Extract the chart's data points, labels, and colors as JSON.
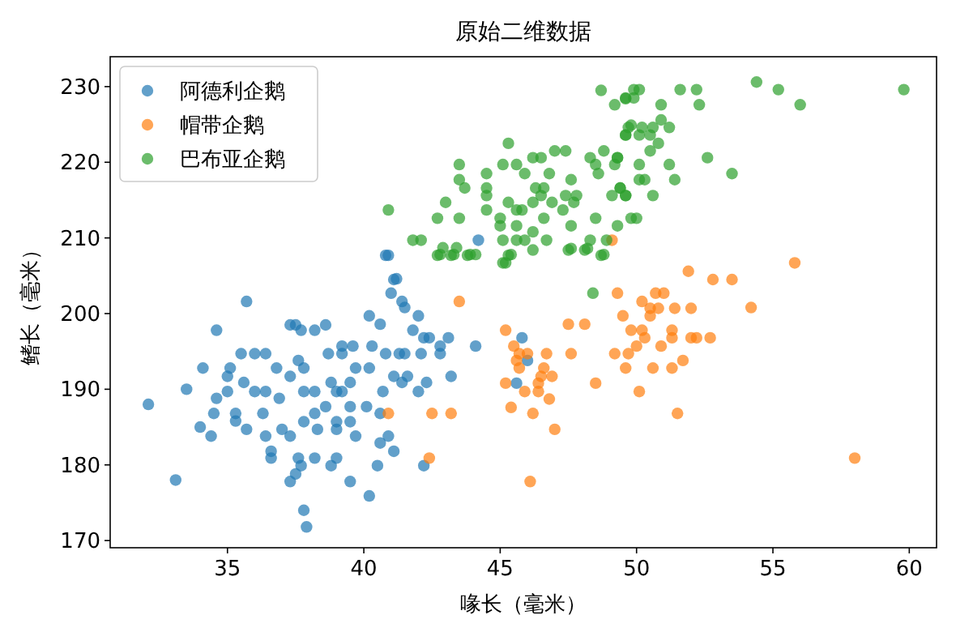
{
  "chart_data": {
    "type": "scatter",
    "title": "原始二维数据",
    "xlabel": "喙长（毫米）",
    "ylabel": "鳍长（毫米）",
    "xlim": [
      30.7,
      61.0
    ],
    "ylim": [
      169.05,
      233.95
    ],
    "xticks": [
      35,
      40,
      45,
      50,
      55,
      60
    ],
    "yticks": [
      170,
      180,
      190,
      200,
      210,
      220,
      230
    ],
    "legend": "top left",
    "marker": "circle",
    "grid": false,
    "series": [
      {
        "name": "阿德利企鹅",
        "color": "#1f77b4",
        "x": [
          32.1,
          33.1,
          33.5,
          34.0,
          34.4,
          34.1,
          34.6,
          34.6,
          34.5,
          35.0,
          35.0,
          35.1,
          35.3,
          35.3,
          35.5,
          35.7,
          35.6,
          35.7,
          36.0,
          36.0,
          36.3,
          36.4,
          36.4,
          36.4,
          36.6,
          36.6,
          36.8,
          36.9,
          37.0,
          37.3,
          37.3,
          37.5,
          37.7,
          37.6,
          37.8,
          37.3,
          37.8,
          37.8,
          37.6,
          37.7,
          37.5,
          37.3,
          37.8,
          37.9,
          38.2,
          38.2,
          38.2,
          38.3,
          38.2,
          38.6,
          38.7,
          38.6,
          38.8,
          39.0,
          39.0,
          39.0,
          38.8,
          39.0,
          39.2,
          39.2,
          39.2,
          39.6,
          39.7,
          39.5,
          39.5,
          39.5,
          39.7,
          39.5,
          40.2,
          40.2,
          40.1,
          40.2,
          40.3,
          40.6,
          40.6,
          40.6,
          40.5,
          40.8,
          40.7,
          40.8,
          41.1,
          41.0,
          41.1,
          41.1,
          40.9,
          41.3,
          41.5,
          41.4,
          41.5,
          41.4,
          41.6,
          41.8,
          42.0,
          42.1,
          42.0,
          42.3,
          42.2,
          42.4,
          42.8,
          42.8,
          43.1,
          43.2,
          42.2,
          44.1,
          45.8,
          46.0,
          45.6,
          44.2,
          40.9,
          41.2
        ],
        "values": [
          188,
          178,
          190,
          185,
          183.8,
          192.8,
          197.8,
          188.8,
          186.8,
          189.7,
          191.7,
          192.8,
          186.8,
          185.8,
          194.7,
          201.6,
          190.9,
          184.7,
          194.7,
          189.7,
          186.8,
          194.7,
          189.7,
          183.8,
          181.8,
          180.9,
          192.8,
          188.8,
          184.7,
          183.8,
          198.5,
          198.5,
          197.8,
          193.8,
          192.8,
          191.7,
          189.7,
          185.7,
          180.9,
          179.9,
          178.8,
          177.8,
          174,
          171.8,
          197.8,
          189.7,
          186.8,
          184.7,
          180.9,
          198.5,
          194.7,
          187.7,
          190.9,
          189.7,
          185.7,
          184.7,
          179.9,
          180.9,
          195.7,
          194.7,
          189.7,
          195.7,
          192.8,
          190.9,
          187.7,
          185.7,
          183.8,
          177.8,
          199.7,
          192.8,
          187.7,
          175.9,
          195.7,
          198.6,
          186.8,
          182.9,
          179.9,
          194.7,
          189.7,
          207.7,
          204.5,
          202.7,
          191.7,
          181.8,
          183.8,
          194.7,
          194.7,
          201.6,
          200.8,
          190.9,
          191.7,
          197.8,
          199.7,
          194.7,
          189.7,
          190.9,
          196.8,
          196.8,
          195.7,
          194.7,
          196.8,
          191.7,
          179.9,
          195.7,
          196.8,
          193.8,
          190.8,
          209.7,
          207.7,
          204.6
        ]
      },
      {
        "name": "帽带企鹅",
        "color": "#ff7f0e",
        "x": [
          43.5,
          45.2,
          45.5,
          45.6,
          45.7,
          45.7,
          46.0,
          45.2,
          45.4,
          45.9,
          46.2,
          46.1,
          46.4,
          46.4,
          46.5,
          46.6,
          46.7,
          46.8,
          46.9,
          47.0,
          47.5,
          47.6,
          48.1,
          48.5,
          49.3,
          49.2,
          49.5,
          49.6,
          49.7,
          49.8,
          50.1,
          50.0,
          50.2,
          50.2,
          50.3,
          50.5,
          50.5,
          50.6,
          50.7,
          50.8,
          50.9,
          51.0,
          51.3,
          51.3,
          51.3,
          51.4,
          51.5,
          51.7,
          51.9,
          52.0,
          52.0,
          52.2,
          52.7,
          52.8,
          53.5,
          54.2,
          55.8,
          58.0,
          40.9,
          42.5,
          43.2,
          42.4,
          49.1
        ],
        "values": [
          201.6,
          197.8,
          195.7,
          193.8,
          194.7,
          192.8,
          194.7,
          190.8,
          187.6,
          189.7,
          186.8,
          177.8,
          190.8,
          189.7,
          191.7,
          192.8,
          194.7,
          188.7,
          191.7,
          184.7,
          198.6,
          194.7,
          198.6,
          190.8,
          202.7,
          194.7,
          199.7,
          192.8,
          194.7,
          197.8,
          189.7,
          195.7,
          201.6,
          197.8,
          196.8,
          200.7,
          199.7,
          192.8,
          202.7,
          200.7,
          195.7,
          202.7,
          197.8,
          196.8,
          192.8,
          200.7,
          186.8,
          193.8,
          205.6,
          200.7,
          196.8,
          196.8,
          196.8,
          204.5,
          204.5,
          200.8,
          206.7,
          180.9,
          186.8,
          186.8,
          186.8,
          180.9,
          209.7
        ]
      },
      {
        "name": "巴布亚企鹅",
        "color": "#2ca02c",
        "x": [
          40.9,
          41.8,
          42.1,
          42.7,
          43.0,
          42.8,
          42.9,
          43.3,
          43.4,
          43.5,
          43.7,
          43.5,
          43.5,
          43.9,
          44.1,
          44.5,
          44.5,
          44.5,
          44.5,
          45.0,
          45.0,
          45.1,
          45.3,
          45.3,
          45.2,
          45.4,
          45.1,
          45.6,
          45.6,
          45.6,
          45.6,
          45.9,
          45.8,
          45.9,
          46.2,
          46.5,
          46.3,
          46.2,
          46.6,
          46.5,
          46.2,
          46.6,
          46.7,
          46.9,
          46.8,
          47.0,
          47.4,
          47.4,
          47.3,
          47.6,
          47.8,
          47.6,
          47.6,
          47.7,
          48.2,
          48.3,
          48.3,
          48.5,
          48.6,
          48.5,
          48.8,
          48.8,
          48.9,
          49.2,
          49.3,
          49.1,
          49.4,
          49.6,
          48.7,
          49.2,
          49.6,
          49.6,
          49.8,
          49.8,
          49.6,
          49.9,
          50.1,
          49.9,
          50.9,
          51.6,
          52.2,
          52.3,
          54.4,
          55.2,
          56.0,
          59.8,
          50.9,
          49.7,
          50.2,
          50.6,
          51.2,
          49.6,
          50.1,
          50.5,
          50.8,
          50.5,
          49.3,
          50.1,
          51.2,
          52.6,
          53.5,
          50.1,
          50.3,
          51.4,
          49.4,
          49.6,
          50.6,
          50.0,
          49.3,
          42.7,
          43.2,
          43.8,
          45.1,
          45.3,
          46.2,
          47.5,
          48.1,
          48.7,
          48.4
        ],
        "values": [
          213.7,
          209.7,
          209.7,
          212.6,
          214.7,
          207.8,
          208.7,
          207.8,
          208.7,
          212.6,
          216.6,
          217.7,
          219.7,
          207.8,
          207.8,
          218.5,
          216.6,
          215.6,
          213.7,
          212.6,
          211.6,
          219.7,
          222.5,
          214.7,
          206.7,
          207.8,
          209.7,
          219.7,
          213.7,
          211.6,
          209.7,
          218.5,
          213.7,
          209.7,
          220.6,
          220.6,
          216.6,
          214.7,
          216.6,
          215.6,
          210.8,
          212.6,
          209.7,
          214.7,
          218.5,
          221.5,
          221.5,
          215.6,
          213.7,
          217.7,
          215.6,
          211.6,
          208.6,
          214.7,
          208.6,
          209.7,
          220.6,
          219.7,
          218.5,
          212.6,
          221.5,
          207.8,
          209.7,
          219.7,
          220.6,
          215.6,
          216.6,
          215.6,
          229.5,
          227.6,
          228.4,
          223.6,
          224.9,
          212.6,
          228.5,
          229.6,
          229.6,
          228.5,
          227.6,
          229.6,
          229.6,
          227.6,
          230.6,
          229.6,
          227.6,
          229.6,
          225.6,
          224.6,
          224.6,
          224.6,
          224.6,
          223.6,
          223.6,
          223.6,
          222.5,
          221.5,
          220.6,
          219.7,
          219.7,
          220.6,
          218.5,
          217.7,
          217.7,
          217.7,
          216.6,
          215.6,
          215.6,
          212.6,
          211.6,
          207.7,
          207.7,
          207.7,
          206.7,
          207.7,
          208.4,
          208.4,
          208.4,
          207.7,
          202.7
        ]
      }
    ]
  }
}
